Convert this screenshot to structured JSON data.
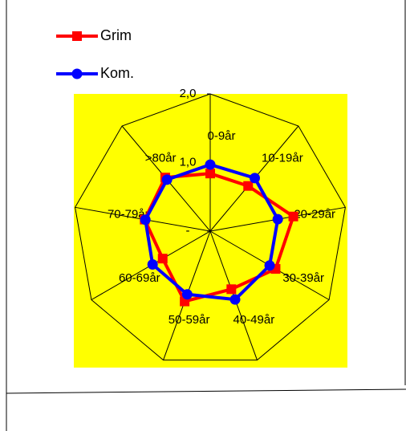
{
  "chart_data": {
    "type": "radar",
    "categories": [
      "0-9år",
      "10-19år",
      "20-29år",
      "30-39år",
      "40-49år",
      "50-59år",
      "60-69år",
      "70-79år",
      ">80år"
    ],
    "series": [
      {
        "name": "Grim",
        "color": "#ff0000",
        "values": [
          0.84,
          0.86,
          1.23,
          1.1,
          0.9,
          1.09,
          0.8,
          0.97,
          1.02
        ]
      },
      {
        "name": "Kom.",
        "color": "#0000ff",
        "values": [
          0.97,
          1.01,
          1.0,
          1.0,
          1.06,
          0.98,
          0.97,
          0.96,
          0.98
        ]
      }
    ],
    "ylim": [
      0,
      2
    ],
    "yticks": [
      {
        "value": 0,
        "label": "-"
      },
      {
        "value": 1,
        "label": "1,0"
      },
      {
        "value": 2,
        "label": "2,0"
      }
    ],
    "plot_background": "#ffff00",
    "legend": "top-left"
  }
}
